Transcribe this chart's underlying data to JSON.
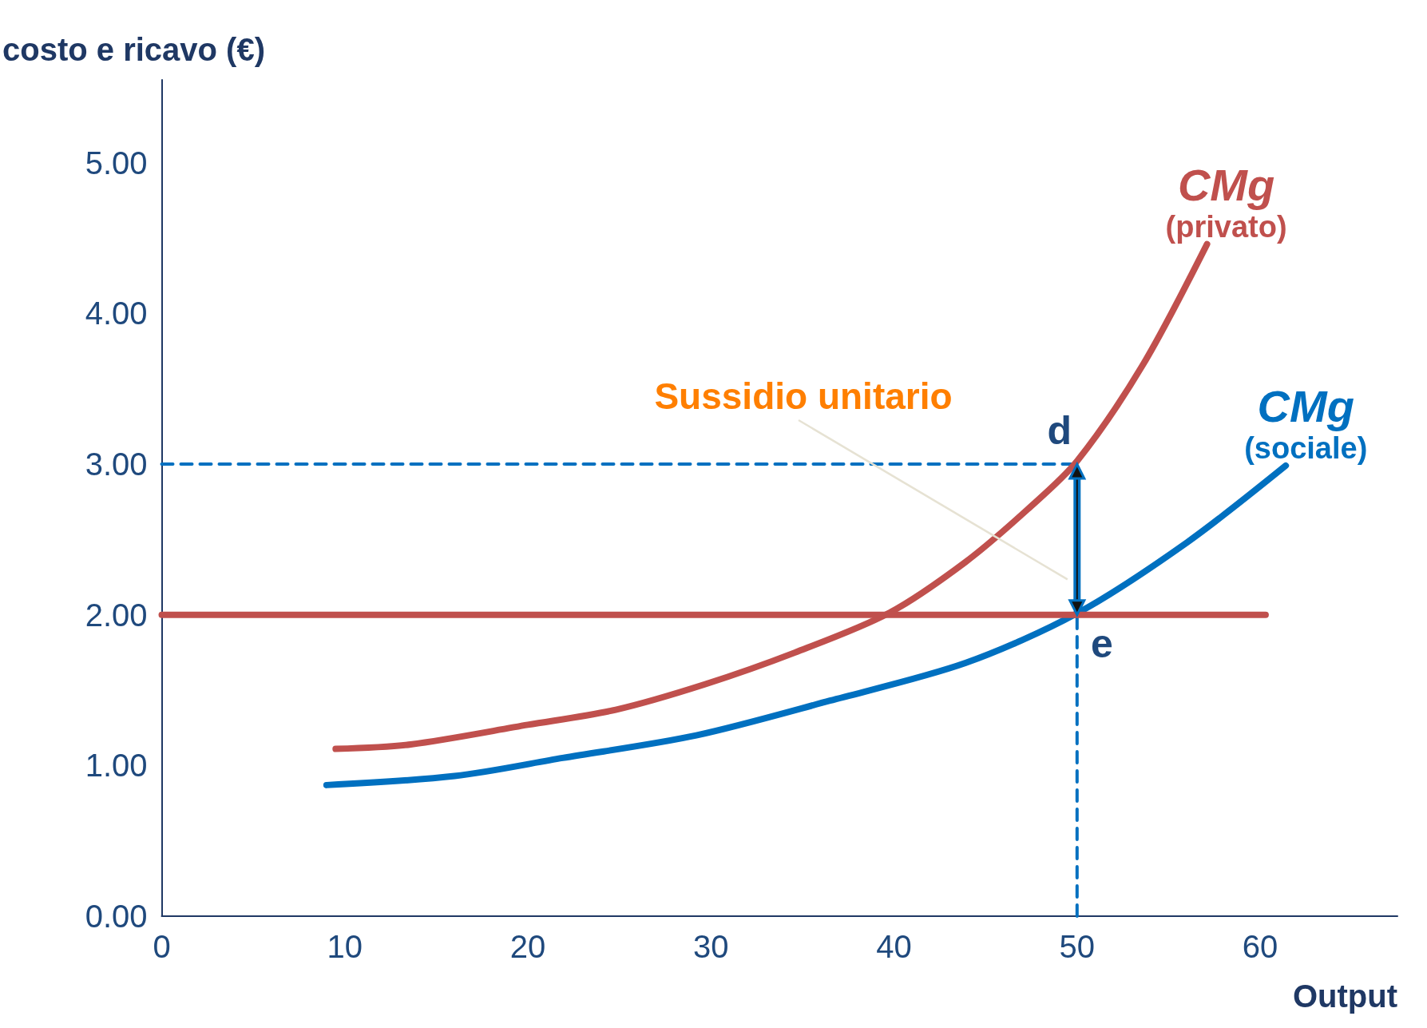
{
  "chart_data": {
    "type": "line",
    "xlabel": "Output",
    "ylabel": "costo e ricavo (€)",
    "xlim": [
      0,
      67.5
    ],
    "ylim": [
      0,
      5.55
    ],
    "xticks": [
      0,
      10,
      20,
      30,
      40,
      50,
      60
    ],
    "yticks": [
      {
        "value": 0,
        "label": "0.00"
      },
      {
        "value": 1,
        "label": "1.00"
      },
      {
        "value": 2,
        "label": "2.00"
      },
      {
        "value": 3,
        "label": "3.00"
      },
      {
        "value": 4,
        "label": "4.00"
      },
      {
        "value": 5,
        "label": "5.00"
      }
    ],
    "grid": false,
    "legend": false,
    "marker": "none",
    "series": [
      {
        "name": "CMg (privato)",
        "color": "#c0504d",
        "x": [
          9.5,
          13.6,
          20,
          24.8,
          29.7,
          34.6,
          39.7,
          43.9,
          47.3,
          50,
          53.6,
          57.1
        ],
        "values": [
          1.11,
          1.14,
          1.27,
          1.37,
          1.54,
          1.75,
          2.01,
          2.35,
          2.7,
          3.02,
          3.66,
          4.46
        ]
      },
      {
        "name": "CMg (sociale)",
        "color": "#0070c0",
        "x": [
          9,
          16,
          21.9,
          29.2,
          36.5,
          43.9,
          50,
          56,
          61.4
        ],
        "values": [
          0.87,
          0.93,
          1.05,
          1.2,
          1.43,
          1.68,
          2.01,
          2.48,
          2.99
        ]
      },
      {
        "color": "#c0504d",
        "x": [
          0,
          60.3
        ],
        "values": [
          2,
          2
        ]
      },
      {
        "color": "#0070c0",
        "x": [
          0,
          50
        ],
        "values": [
          3,
          3
        ],
        "line_style": "dashed"
      },
      {
        "color": "#0070c0",
        "x": [
          50,
          50
        ],
        "values": [
          0,
          2
        ],
        "line_style": "dashed"
      }
    ],
    "annotations": [
      "Sussidio unitario",
      {
        "text": "d",
        "x": 50,
        "y": 3
      },
      {
        "text": "e",
        "x": 50,
        "y": 2
      }
    ]
  }
}
